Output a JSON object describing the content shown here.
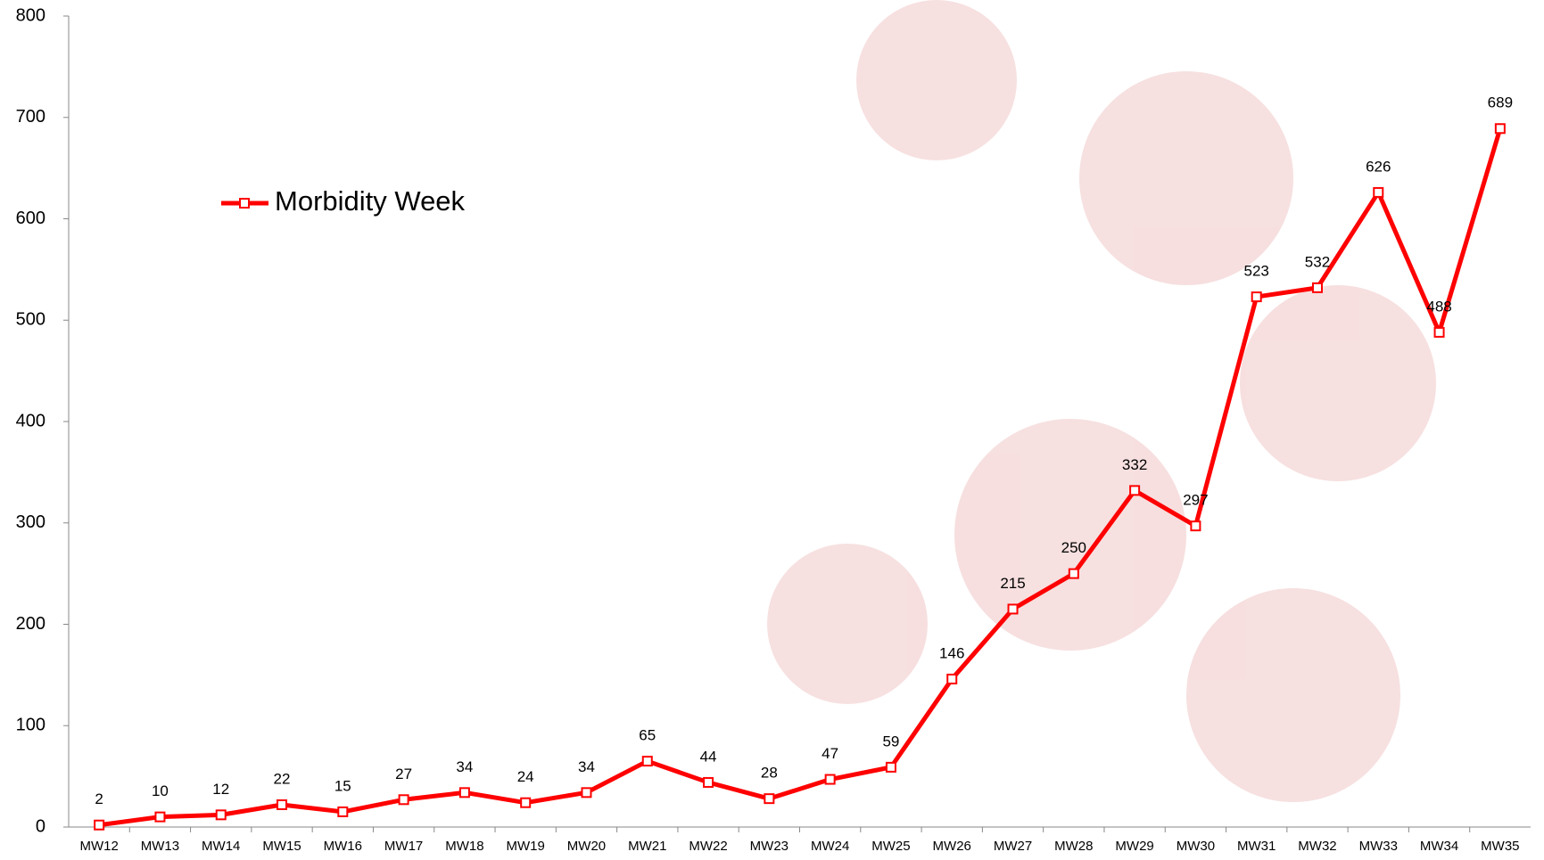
{
  "chart_data": {
    "type": "line",
    "categories": [
      "MW12",
      "MW13",
      "MW14",
      "MW15",
      "MW16",
      "MW17",
      "MW18",
      "MW19",
      "MW20",
      "MW21",
      "MW22",
      "MW23",
      "MW24",
      "MW25",
      "MW26",
      "MW27",
      "MW28",
      "MW29",
      "MW30",
      "MW31",
      "MW32",
      "MW33",
      "MW34",
      "MW35"
    ],
    "series": [
      {
        "name": "Morbidity Week",
        "color": "#ff0000",
        "values": [
          2,
          10,
          12,
          22,
          15,
          27,
          34,
          24,
          34,
          65,
          44,
          28,
          47,
          59,
          146,
          215,
          250,
          332,
          297,
          523,
          532,
          626,
          488,
          689
        ]
      }
    ],
    "ylim": [
      0,
      800
    ],
    "yticks": [
      0,
      100,
      200,
      300,
      400,
      500,
      600,
      700,
      800
    ],
    "grid": false,
    "legend": "upper-left"
  }
}
